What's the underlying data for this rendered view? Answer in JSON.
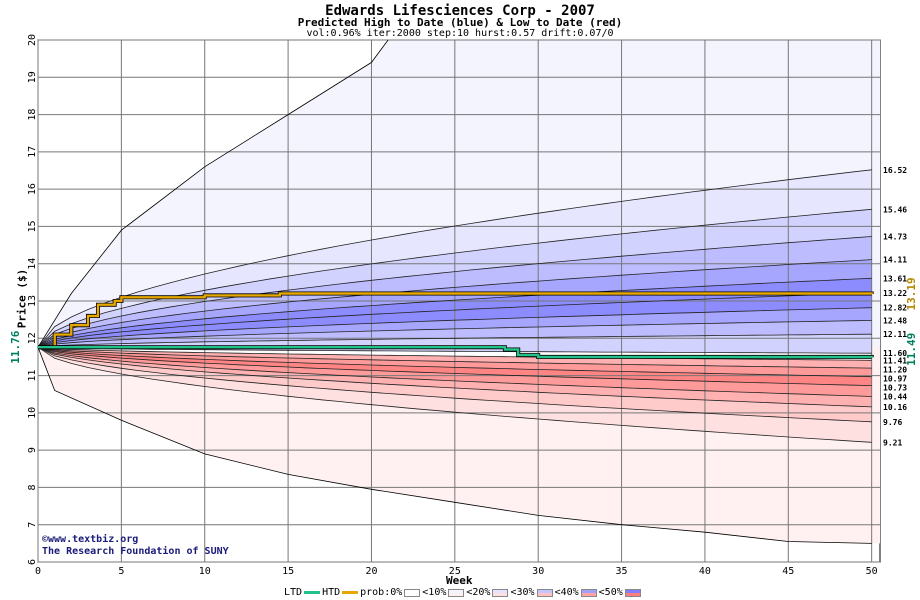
{
  "title": "Edwards Lifesciences Corp - 2007",
  "subtitle": "Predicted High to Date (blue) &  Low to Date (red)",
  "params": "vol:0.96% iter:2000 step:10 hurst:0.57 drift:0.07/0",
  "credit": {
    "line1": "©www.textbiz.org",
    "line2": "The Research Foundation of SUNY"
  },
  "legend": {
    "ltd": "LTD",
    "htd": "HTD",
    "prob": "prob:0%",
    "lt10": "<10%",
    "lt20": "<20%",
    "lt30": "<30%",
    "lt40": "<40%",
    "lt50": "<50%"
  },
  "colors": {
    "htd": "#e6a800",
    "ltd": "#22c28a",
    "blue_band": "#7f7fff",
    "red_band": "#ff7f7f"
  },
  "chart_data": {
    "type": "area",
    "title": "Edwards Lifesciences Corp - 2007",
    "xlabel": "Week",
    "ylabel": "Price ($)",
    "xlim": [
      0,
      50.5
    ],
    "ylim": [
      6,
      20
    ],
    "x_ticks": [
      0,
      5,
      10,
      15,
      20,
      25,
      30,
      35,
      40,
      45,
      50
    ],
    "y_ticks": [
      6,
      7,
      8,
      9,
      10,
      11,
      12,
      13,
      14,
      15,
      16,
      17,
      18,
      19,
      20
    ],
    "start_price": "11.76",
    "grid": true,
    "end_levels_high": [
      "16.52",
      "15.46",
      "14.73",
      "14.11",
      "13.61",
      "13.22",
      "12.82",
      "12.48",
      "12.11",
      "11.60"
    ],
    "end_levels_low": [
      "11.41",
      "11.20",
      "10.97",
      "10.73",
      "10.44",
      "10.16",
      "9.76",
      "9.21"
    ],
    "htd_end_label": "13.19",
    "ltd_end_label": "11.49",
    "high_envelope": {
      "x": [
        0,
        2,
        5,
        10,
        15,
        20,
        21
      ],
      "y": [
        11.76,
        13.2,
        14.9,
        16.6,
        18.0,
        19.4,
        20.0
      ]
    },
    "low_envelope": {
      "x": [
        0,
        1,
        5,
        10,
        15,
        20,
        25,
        30,
        35,
        40,
        45,
        50
      ],
      "y": [
        11.76,
        10.6,
        9.8,
        8.9,
        8.35,
        7.95,
        7.6,
        7.25,
        7.0,
        6.8,
        6.55,
        6.5
      ]
    },
    "series": [
      {
        "name": "HTD",
        "x": [
          0,
          1,
          2,
          3,
          3.6,
          4,
          4.6,
          5,
          10,
          14,
          14.5,
          50
        ],
        "y": [
          11.76,
          12.1,
          12.35,
          12.6,
          12.9,
          12.9,
          13.0,
          13.1,
          13.15,
          13.15,
          13.2,
          13.19
        ]
      },
      {
        "name": "LTD",
        "x": [
          0,
          10,
          28,
          28.8,
          30,
          50
        ],
        "y": [
          11.76,
          11.76,
          11.7,
          11.55,
          11.5,
          11.49
        ]
      }
    ]
  }
}
